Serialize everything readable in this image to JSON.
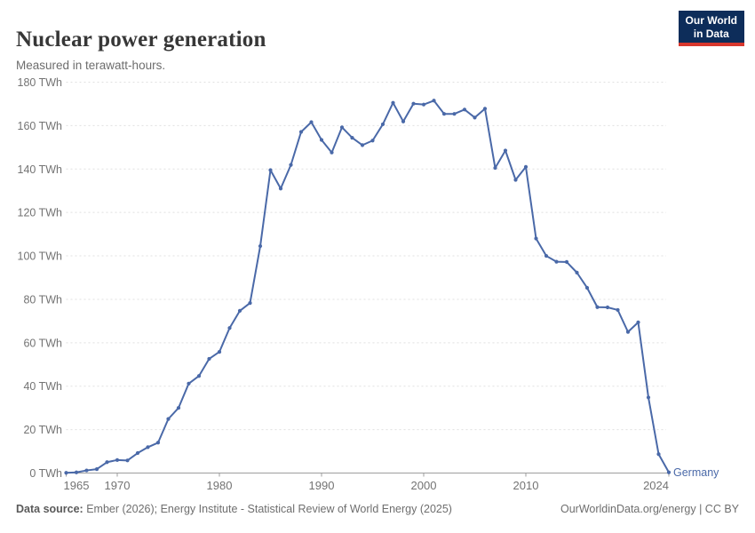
{
  "header": {
    "title": "Nuclear power generation",
    "subtitle": "Measured in terawatt-hours."
  },
  "logo": {
    "line1": "Our World",
    "line2": "in Data",
    "bg_color": "#0d2d5a",
    "accent_color": "#d8372d"
  },
  "footer": {
    "source_label": "Data source:",
    "source_text": " Ember (2026); Energy Institute - Statistical Review of World Energy (2025)",
    "right_text": "OurWorldinData.org/energy | CC BY"
  },
  "chart_data": {
    "type": "line",
    "title": "Nuclear power generation",
    "subtitle": "Measured in terawatt-hours.",
    "unit": "TWh",
    "entity": "Germany",
    "entity_label": "Germany",
    "line_color": "#4a69a8",
    "grid": true,
    "grid_style": "dashed",
    "grid_color": "#e0e0e0",
    "axis_color": "#9d9d9d",
    "tick_label_color": "#737373",
    "ylim": [
      0,
      180
    ],
    "ytick_step": 20,
    "ytick_labels": [
      "0 TWh",
      "20 TWh",
      "40 TWh",
      "60 TWh",
      "80 TWh",
      "100 TWh",
      "120 TWh",
      "140 TWh",
      "160 TWh",
      "180 TWh"
    ],
    "xlim": [
      1965,
      2024
    ],
    "xticks": [
      1965,
      1970,
      1980,
      1990,
      2000,
      2010,
      2024
    ],
    "xtick_labels": [
      "1965",
      "1970",
      "1980",
      "1990",
      "2000",
      "2010",
      "2024"
    ],
    "x": [
      1965,
      1966,
      1967,
      1968,
      1969,
      1970,
      1971,
      1972,
      1973,
      1974,
      1975,
      1976,
      1977,
      1978,
      1979,
      1980,
      1981,
      1982,
      1983,
      1984,
      1985,
      1986,
      1987,
      1988,
      1989,
      1990,
      1991,
      1992,
      1993,
      1994,
      1995,
      1996,
      1997,
      1998,
      1999,
      2000,
      2001,
      2002,
      2003,
      2004,
      2005,
      2006,
      2007,
      2008,
      2009,
      2010,
      2011,
      2012,
      2013,
      2014,
      2015,
      2016,
      2017,
      2018,
      2019,
      2020,
      2021,
      2022,
      2023,
      2024
    ],
    "series": [
      {
        "name": "Germany",
        "values": [
          0.1,
          0.3,
          1.2,
          1.8,
          5.0,
          6.0,
          5.8,
          9.2,
          11.9,
          14.0,
          24.9,
          30.0,
          41.2,
          44.7,
          52.6,
          55.8,
          66.8,
          74.7,
          78.3,
          104.5,
          139.5,
          131.0,
          141.9,
          157.1,
          161.6,
          153.4,
          147.6,
          159.2,
          154.4,
          151.0,
          153.1,
          160.6,
          170.5,
          161.9,
          170.1,
          169.7,
          171.5,
          165.4,
          165.4,
          167.4,
          163.7,
          167.8,
          140.5,
          148.5,
          135.0,
          141.0,
          108.0,
          100.0,
          97.3,
          97.2,
          92.3,
          85.3,
          76.4,
          76.3,
          75.1,
          65.0,
          69.4,
          34.8,
          8.7,
          0.3
        ]
      }
    ]
  }
}
